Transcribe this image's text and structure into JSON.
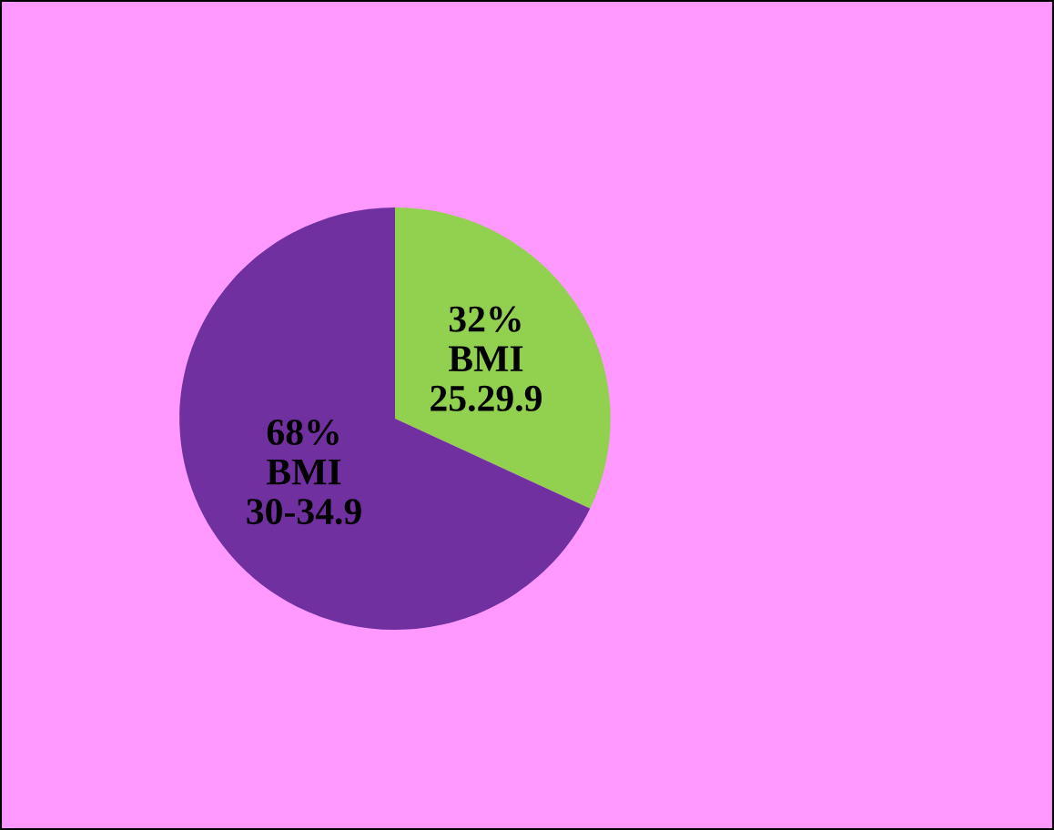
{
  "chart_data": {
    "type": "pie",
    "categories": [
      "BMI\n25.29.9",
      "BMI\n30-34.9"
    ],
    "values": [
      32,
      68
    ],
    "colors": [
      "#92d050",
      "#7030a0"
    ],
    "value_labels": [
      "32%",
      "68%"
    ]
  }
}
